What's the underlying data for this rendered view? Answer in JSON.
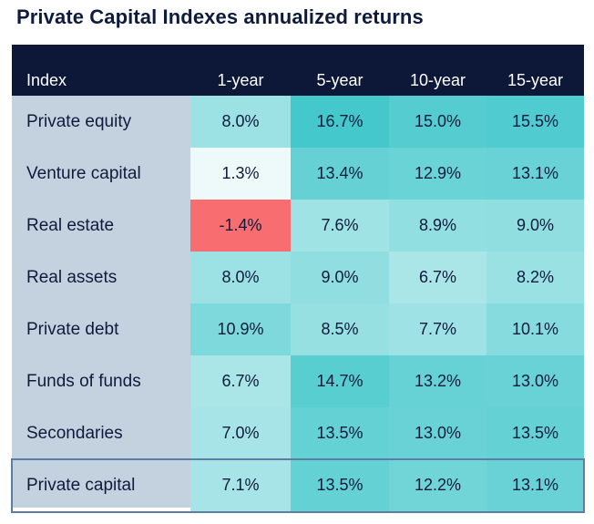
{
  "title": "Private Capital Indexes annualized returns",
  "chart_data": {
    "type": "table",
    "title": "Private Capital Indexes annualized returns",
    "columns": [
      "Index",
      "1-year",
      "5-year",
      "10-year",
      "15-year"
    ],
    "rows": [
      {
        "label": "Private equity",
        "values": [
          "8.0%",
          "16.7%",
          "15.0%",
          "15.5%"
        ]
      },
      {
        "label": "Venture capital",
        "values": [
          "1.3%",
          "13.4%",
          "12.9%",
          "13.1%"
        ]
      },
      {
        "label": "Real estate",
        "values": [
          "-1.4%",
          "7.6%",
          "8.9%",
          "9.0%"
        ]
      },
      {
        "label": "Real assets",
        "values": [
          "8.0%",
          "9.0%",
          "6.7%",
          "8.2%"
        ]
      },
      {
        "label": "Private debt",
        "values": [
          "10.9%",
          "8.5%",
          "7.7%",
          "10.1%"
        ]
      },
      {
        "label": "Funds of funds",
        "values": [
          "6.7%",
          "14.7%",
          "13.2%",
          "13.0%"
        ]
      },
      {
        "label": "Secondaries",
        "values": [
          "7.0%",
          "13.5%",
          "13.0%",
          "13.5%"
        ]
      },
      {
        "label": "Private capital",
        "values": [
          "7.1%",
          "13.5%",
          "12.2%",
          "13.1%"
        ]
      }
    ],
    "highlighted_row": "Private capital",
    "color_scale": {
      "negative": "#f86d70",
      "low": "#f4fbfc",
      "high": "#45c8cc",
      "min_value": -1.4,
      "max_value": 16.7
    },
    "colors": {
      "header_bg": "#0d1838",
      "label_column_bg": "#c4d2e0",
      "highlight_border": "#5d7ea2"
    }
  }
}
